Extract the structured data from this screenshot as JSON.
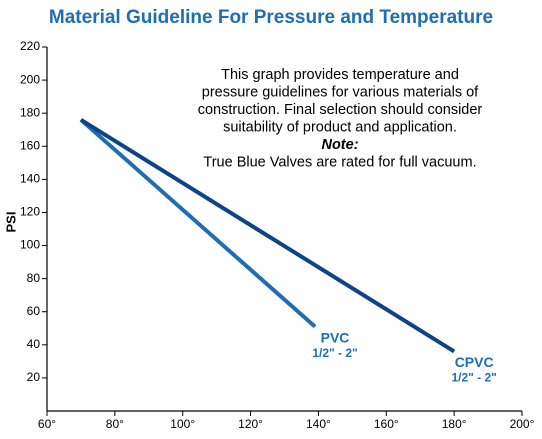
{
  "chart_data": {
    "type": "line",
    "title": "Material Guideline For Pressure and Temperature",
    "y_label": "PSI",
    "notes": [
      {
        "text": "This graph provides temperature and",
        "style": "normal"
      },
      {
        "text": "pressure guidelines for various materials of",
        "style": "normal"
      },
      {
        "text": "construction.  Final selection should consider",
        "style": "normal"
      },
      {
        "text": "suitability of product and application.",
        "style": "normal"
      },
      {
        "text": "Note:",
        "style": "bold-italic"
      },
      {
        "text": "True Blue Valves are rated for full vacuum.",
        "style": "normal"
      }
    ],
    "series": [
      {
        "name": "PVC",
        "size_label": "1/2\" - 2\"",
        "color": "#1f6db3",
        "x": [
          70,
          139
        ],
        "values": [
          176,
          51
        ]
      },
      {
        "name": "CPVC",
        "size_label": "1/2\" - 2\"",
        "color": "#0e4289",
        "x": [
          70,
          180
        ],
        "values": [
          176,
          36
        ]
      }
    ],
    "label_color": "#1f6db3",
    "xlim": [
      60,
      200
    ],
    "xticks": [
      {
        "value": 60,
        "label": "60°"
      },
      {
        "value": 80,
        "label": "80°"
      },
      {
        "value": 100,
        "label": "100°"
      },
      {
        "value": 120,
        "label": "120°"
      },
      {
        "value": 140,
        "label": "140°"
      },
      {
        "value": 160,
        "label": "160°"
      },
      {
        "value": 180,
        "label": "180°"
      },
      {
        "value": 200,
        "label": "200°"
      }
    ],
    "ylim": [
      0,
      220
    ],
    "yticks": [
      20,
      40,
      60,
      80,
      100,
      120,
      140,
      160,
      180,
      200,
      220
    ]
  }
}
